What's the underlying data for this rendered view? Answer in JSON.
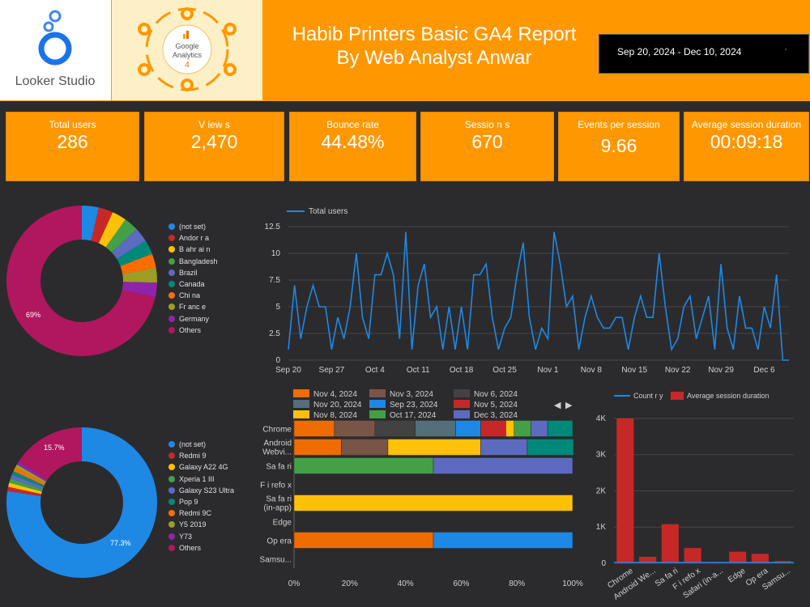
{
  "header": {
    "title_line1": "Habib Printers Basic GA4 Report",
    "title_line2": "By Web Analyst Anwar",
    "date_range": "Sep 20, 2024 - Dec 10, 2024",
    "date_dropdown_icon": "dropdown-arrow-icon",
    "looker_logo_text": "Looker Studio",
    "ga_logo_line1": "Google",
    "ga_logo_line2": "Analytics",
    "ga_logo_line3": "4"
  },
  "kpis": [
    {
      "label": "Total users",
      "value": "286"
    },
    {
      "label": "V iew s",
      "value": "2,470"
    },
    {
      "label": "Bounce rate",
      "value": "44.48%"
    },
    {
      "label": "Sessio n s",
      "value": "670"
    },
    {
      "label": "Events per session",
      "value": "9.66"
    },
    {
      "label": "Average session duration",
      "value": "00:09:18"
    }
  ],
  "colors": {
    "orange": "#ff9800",
    "background": "#2b2b2d",
    "line_blue": "#1e88e5",
    "bar_red": "#c62828"
  },
  "chart_data": [
    {
      "type": "pie",
      "name": "country-donut",
      "legend": [
        "(not set)",
        "Andor r a",
        "B ahr ai n",
        "Bangladesh",
        "Brazil",
        "Canada",
        "Chi na",
        "Fr anc e",
        "Germany",
        "Others"
      ],
      "colors": [
        "#1e88e5",
        "#c62828",
        "#ffc107",
        "#43a047",
        "#5c6bc0",
        "#00897b",
        "#ff6d00",
        "#9e9d24",
        "#8e24aa",
        "#b0175f"
      ],
      "values": [
        3.5,
        3.0,
        3.0,
        3.0,
        3.0,
        3.0,
        3.0,
        3.0,
        3.0,
        69
      ],
      "labels_shown": {
        "Others": "69%"
      }
    },
    {
      "type": "line",
      "name": "total-users-line",
      "series_name": "Total users",
      "x": [
        "Sep 20",
        "Sep 21",
        "Sep 22",
        "Sep 23",
        "Sep 24",
        "Sep 25",
        "Sep 26",
        "Sep 27",
        "Sep 28",
        "Sep 29",
        "Sep 30",
        "Oct 1",
        "Oct 2",
        "Oct 3",
        "Oct 4",
        "Oct 5",
        "Oct 6",
        "Oct 7",
        "Oct 8",
        "Oct 9",
        "Oct 10",
        "Oct 11",
        "Oct 12",
        "Oct 13",
        "Oct 14",
        "Oct 15",
        "Oct 16",
        "Oct 17",
        "Oct 18",
        "Oct 19",
        "Oct 20",
        "Oct 21",
        "Oct 22",
        "Oct 23",
        "Oct 24",
        "Oct 25",
        "Oct 26",
        "Oct 27",
        "Oct 28",
        "Oct 29",
        "Oct 30",
        "Oct 31",
        "Nov 1",
        "Nov 2",
        "Nov 3",
        "Nov 4",
        "Nov 5",
        "Nov 6",
        "Nov 7",
        "Nov 8",
        "Nov 9",
        "Nov 10",
        "Nov 11",
        "Nov 12",
        "Nov 13",
        "Nov 14",
        "Nov 15",
        "Nov 16",
        "Nov 17",
        "Nov 18",
        "Nov 19",
        "Nov 20",
        "Nov 21",
        "Nov 22",
        "Nov 23",
        "Nov 24",
        "Nov 25",
        "Nov 26",
        "Nov 27",
        "Nov 28",
        "Nov 29",
        "Nov 30",
        "Dec 1",
        "Dec 2",
        "Dec 3",
        "Dec 4",
        "Dec 5",
        "Dec 6",
        "Dec 7",
        "Dec 8",
        "Dec 9",
        "Dec 10"
      ],
      "values": [
        1,
        7,
        2,
        5,
        7,
        5,
        5,
        1,
        4,
        2,
        5,
        10,
        4,
        2,
        8,
        8,
        10,
        8,
        2,
        12,
        1,
        7,
        9,
        4,
        5,
        1,
        5,
        1,
        5,
        1,
        8,
        8,
        9,
        4,
        1,
        3,
        4,
        8,
        11,
        4,
        1,
        3,
        2,
        12,
        9,
        5,
        6,
        1,
        4,
        6,
        4,
        3,
        3,
        4,
        4,
        1,
        4,
        6,
        4,
        4,
        10,
        5,
        1,
        2,
        5,
        6,
        2,
        4,
        6,
        1,
        9,
        3,
        1,
        6,
        3,
        3,
        1,
        5,
        3,
        8,
        0,
        0
      ],
      "x_ticks": [
        "Sep 20",
        "Sep 27",
        "Oct 4",
        "Oct 11",
        "Oct 18",
        "Oct 25",
        "Nov 1",
        "Nov 8",
        "Nov 15",
        "Nov 22",
        "Nov 29",
        "Dec 6"
      ],
      "y_ticks": [
        "0",
        "2.5",
        "5",
        "7.5",
        "10",
        "12.5"
      ],
      "ylim": [
        0,
        12.5
      ]
    },
    {
      "type": "pie",
      "name": "device-donut",
      "legend": [
        "(not set)",
        "Redmi 9",
        "Galaxy A22 4G",
        "Xperia 1 III",
        "Galaxy S23 Ultra",
        "Pop 9",
        "Redmi 9C",
        "Y5 2019",
        "Y73",
        "Others"
      ],
      "colors": [
        "#1e88e5",
        "#c62828",
        "#ffc107",
        "#43a047",
        "#5c6bc0",
        "#00897b",
        "#ff6d00",
        "#9e9d24",
        "#8e24aa",
        "#b0175f"
      ],
      "values": [
        77.3,
        0.9,
        0.9,
        0.9,
        0.9,
        0.8,
        0.8,
        0.8,
        0.8,
        15.7
      ],
      "labels_shown": {
        "(not set)": "77.3%",
        "Others": "15.7%"
      }
    },
    {
      "type": "bar",
      "name": "browser-stacked-bar",
      "orientation": "horizontal-100-percent",
      "legend": [
        {
          "name": "Nov 4, 2024",
          "color": "#ef6c00"
        },
        {
          "name": "Nov 3, 2024",
          "color": "#795548"
        },
        {
          "name": "Nov 6, 2024",
          "color": "#424242"
        },
        {
          "name": "Nov 20, 2024",
          "color": "#546e7a"
        },
        {
          "name": "Sep 23, 2024",
          "color": "#1e88e5"
        },
        {
          "name": "Nov 5, 2024",
          "color": "#c62828"
        },
        {
          "name": "Nov 8, 2024",
          "color": "#ffc107"
        },
        {
          "name": "Oct 17, 2024",
          "color": "#43a047"
        },
        {
          "name": "Dec 3, 2024",
          "color": "#5c6bc0"
        }
      ],
      "extra_colors": [
        "#00897b"
      ],
      "categories": [
        "Chrome",
        "Android Webvi...",
        "Sa fa ri",
        "F i refo x",
        "Sa fa ri (in-app)",
        "Edge",
        "Op era",
        "Samsu..."
      ],
      "segments": [
        [
          14.5,
          14.5,
          14.5,
          14.5,
          9,
          9,
          3,
          6,
          6,
          9
        ],
        [
          17,
          16.7,
          0,
          0,
          0,
          0,
          33.3,
          0,
          16.7,
          16.6
        ],
        [
          0,
          0,
          0,
          0,
          0,
          0,
          0,
          50,
          50,
          0
        ],
        [],
        [
          0,
          0,
          0,
          0,
          0,
          0,
          100,
          0,
          0,
          0
        ],
        [],
        [
          50,
          0,
          0,
          0,
          50,
          0,
          0,
          0,
          0,
          0
        ],
        []
      ],
      "x_ticks": [
        "0%",
        "20%",
        "40%",
        "60%",
        "80%",
        "100%"
      ],
      "pager_prev": "◀",
      "pager_next": "▶"
    },
    {
      "type": "bar",
      "name": "browser-count-duration-bar",
      "legend": [
        {
          "name": "Count r y",
          "color": "#1e88e5",
          "style": "line"
        },
        {
          "name": "Average session duration",
          "color": "#c62828",
          "style": "box"
        }
      ],
      "categories": [
        "Chrome",
        "Android We...",
        "Sa fa ri",
        "F i refo x",
        "Safari (in-a...",
        "Edge",
        "Op era",
        "Samsu..."
      ],
      "series": [
        {
          "name": "Average session duration",
          "values": [
            4000,
            180,
            1080,
            420,
            20,
            320,
            260,
            60
          ]
        }
      ],
      "y_ticks": [
        "0",
        "1K",
        "2K",
        "3K",
        "4K"
      ],
      "ylim": [
        0,
        4200
      ]
    }
  ]
}
